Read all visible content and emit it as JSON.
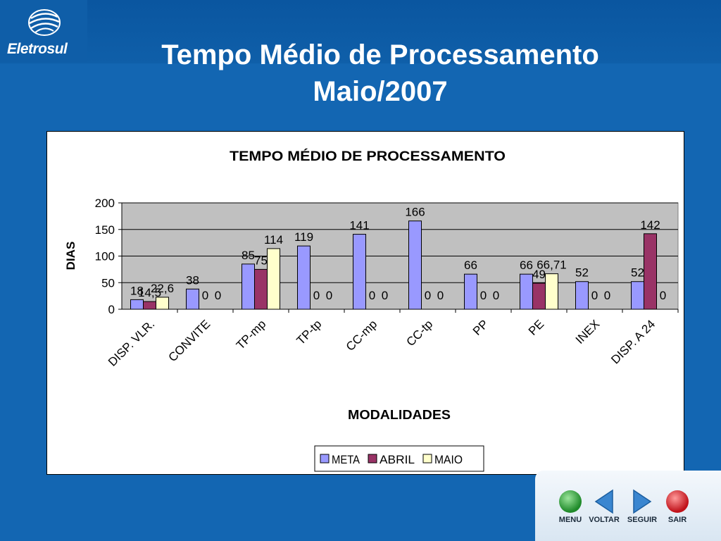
{
  "header": {
    "logo_text": "Eletrosul",
    "title_line1": "Tempo Médio de Processamento",
    "title_line2": "Maio/2007"
  },
  "chart_data": {
    "type": "bar",
    "title": "TEMPO MÉDIO DE PROCESSAMENTO",
    "xlabel": "MODALIDADES",
    "ylabel": "DIAS",
    "ylim": [
      0,
      200
    ],
    "yticks": [
      0,
      50,
      100,
      150,
      200
    ],
    "grid": true,
    "legend_position": "bottom",
    "categories": [
      "DISP. VLR.",
      "CONVITE",
      "TP-mp",
      "TP-tp",
      "CC-mp",
      "CC-tp",
      "PP",
      "PE",
      "INEX",
      "DISP. A 24"
    ],
    "series": [
      {
        "name": "META",
        "color": "#9999ff",
        "values": [
          18,
          38,
          85,
          119,
          141,
          166,
          66,
          66,
          52,
          52
        ],
        "labels": [
          "18",
          "38",
          "85",
          "119",
          "141",
          "166",
          "66",
          "66",
          "52",
          "52"
        ]
      },
      {
        "name": "ABRIL",
        "color": "#993366",
        "values": [
          14.5,
          0,
          75,
          0,
          0,
          0,
          0,
          49,
          0,
          142
        ],
        "labels": [
          "14,5",
          "0",
          "75",
          "0",
          "0",
          "0",
          "0",
          "49",
          "0",
          "142"
        ]
      },
      {
        "name": "MAIO",
        "color": "#ffffcc",
        "values": [
          22.6,
          0,
          114,
          0,
          0,
          0,
          0,
          66.71,
          0,
          0
        ],
        "labels": [
          "22,6",
          "0",
          "114",
          "0",
          "0",
          "0",
          "0",
          "66,71",
          "0",
          "0"
        ]
      }
    ]
  },
  "nav": {
    "menu": "MENU",
    "voltar": "VOLTAR",
    "seguir": "SEGUIR",
    "sair": "SAIR"
  }
}
